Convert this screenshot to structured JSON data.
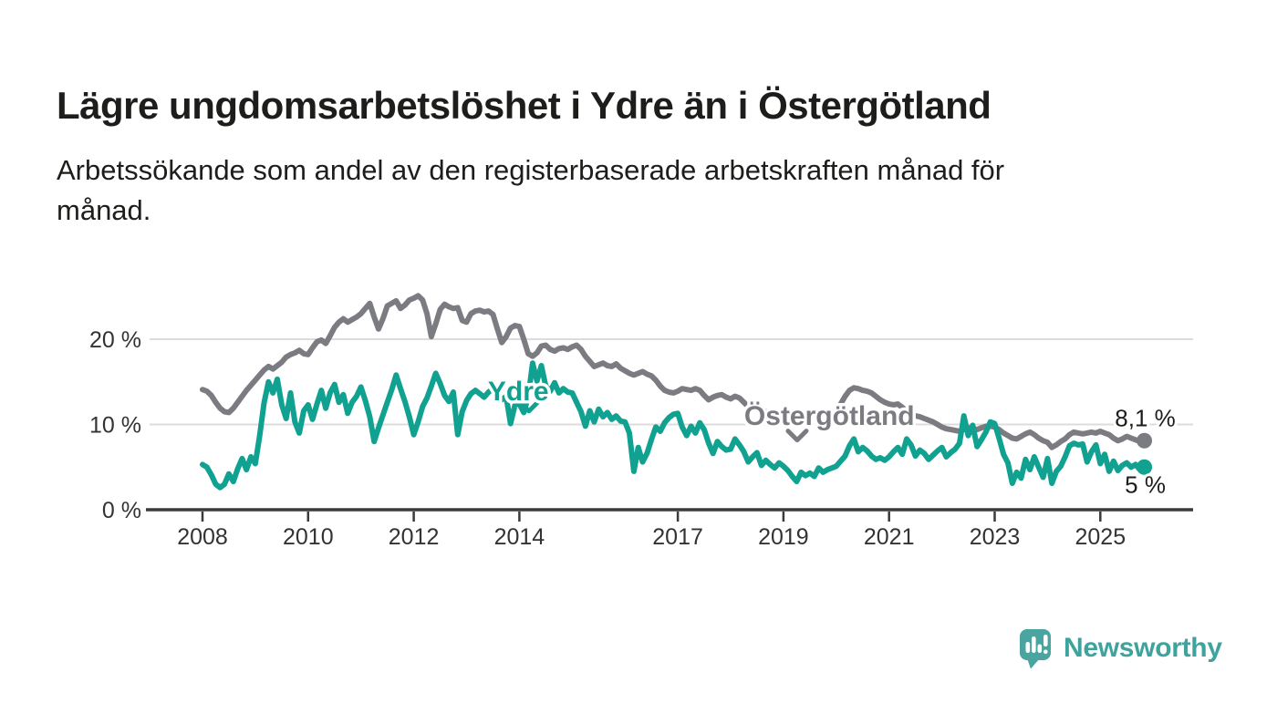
{
  "header": {
    "title": "Lägre ungdomsarbetslöshet i Ydre än i Östergötland",
    "subtitle": "Arbetssökande som andel av den registerbaserade arbetskraften månad för månad.",
    "subtitle_lines": [
      "Arbetssökande som andel av den registerbaserade arbetskraften månad för",
      "månad."
    ]
  },
  "footer": {
    "brand": "Newsworthy"
  },
  "colors": {
    "ydre": "#10a191",
    "ostergotland": "#7b7b82",
    "grid": "#dcdcdc",
    "axis": "#3a3a3a",
    "tick_text": "#333333",
    "label_text": "#1d1d1b",
    "brand_teal": "#3fa39d",
    "brand_icon": "#4aa4a0"
  },
  "chart_data": {
    "type": "line",
    "title": "Lägre ungdomsarbetslöshet i Ydre än i Östergötland",
    "unit": "%",
    "x_start_year": 2008,
    "x_step_months": 1,
    "x_ticks": [
      2008,
      2010,
      2012,
      2014,
      2017,
      2019,
      2021,
      2023,
      2025
    ],
    "x_tick_labels": [
      "2008",
      "2010",
      "2012",
      "2014",
      "2017",
      "2019",
      "2021",
      "2023",
      "2025"
    ],
    "y_ticks": [
      {
        "value": 0,
        "label": "0 %"
      },
      {
        "value": 10,
        "label": "10 %"
      },
      {
        "value": 20,
        "label": "20 %"
      }
    ],
    "ylim": [
      0,
      27
    ],
    "grid": true,
    "legend_position": "inline-labels",
    "series": [
      {
        "name": "Östergötland",
        "color_key": "ostergotland",
        "end_label": "8,1 %",
        "end_value": 8.1,
        "values": [
          14.1,
          13.9,
          13.4,
          12.6,
          11.9,
          11.5,
          11.4,
          11.9,
          12.6,
          13.3,
          14.0,
          14.6,
          15.2,
          15.8,
          16.4,
          16.8,
          16.5,
          16.9,
          17.3,
          17.9,
          18.2,
          18.4,
          18.7,
          18.3,
          18.2,
          19.0,
          19.7,
          19.9,
          19.5,
          20.4,
          21.4,
          22.0,
          22.4,
          22.0,
          22.3,
          22.6,
          23.0,
          23.6,
          24.2,
          22.6,
          21.2,
          22.4,
          23.9,
          24.2,
          24.5,
          23.6,
          24.0,
          24.6,
          24.8,
          25.1,
          24.6,
          23.0,
          20.3,
          21.8,
          23.5,
          24.1,
          23.8,
          23.6,
          23.7,
          22.2,
          22.0,
          23.0,
          23.3,
          23.4,
          23.2,
          23.3,
          22.9,
          21.2,
          19.6,
          20.3,
          21.3,
          21.6,
          21.5,
          20.0,
          18.3,
          18.0,
          18.4,
          19.2,
          19.3,
          18.8,
          18.6,
          18.9,
          19.0,
          18.8,
          19.1,
          19.3,
          18.8,
          18.0,
          17.4,
          16.8,
          17.0,
          17.2,
          16.9,
          16.8,
          17.1,
          16.6,
          16.3,
          16.0,
          15.8,
          16.0,
          16.2,
          15.9,
          15.7,
          15.2,
          14.5,
          14.0,
          13.8,
          13.7,
          13.9,
          14.2,
          14.1,
          14.0,
          14.2,
          14.0,
          13.4,
          12.9,
          13.2,
          13.4,
          13.5,
          13.2,
          13.0,
          13.3,
          13.1,
          12.6,
          12.1,
          11.9,
          12.0,
          11.8,
          11.5,
          11.3,
          11.4,
          11.2,
          11.3,
          11.5,
          11.4,
          11.2,
          11.0,
          10.9,
          11.1,
          11.0,
          10.8,
          10.9,
          11.1,
          11.4,
          11.8,
          12.4,
          13.3,
          14.0,
          14.3,
          14.2,
          14.0,
          13.9,
          13.7,
          13.3,
          12.9,
          12.6,
          12.4,
          12.3,
          12.4,
          12.0,
          11.6,
          11.2,
          11.0,
          10.9,
          10.7,
          10.5,
          10.3,
          10.0,
          9.7,
          9.5,
          9.4,
          9.3,
          9.2,
          9.4,
          9.6,
          9.5,
          9.4,
          9.6,
          9.8,
          9.8,
          9.7,
          9.4,
          9.0,
          8.7,
          8.4,
          8.3,
          8.6,
          8.9,
          9.1,
          8.8,
          8.4,
          8.1,
          7.9,
          7.3,
          7.6,
          8.0,
          8.3,
          8.8,
          9.1,
          9.0,
          8.9,
          9.0,
          9.1,
          9.0,
          9.2,
          9.0,
          8.8,
          8.4,
          8.1,
          8.3,
          8.6,
          8.4,
          8.2,
          8.0,
          8.1
        ]
      },
      {
        "name": "Ydre",
        "color_key": "ydre",
        "end_label": "5 %",
        "end_value": 5.0,
        "values": [
          5.3,
          5.0,
          4.1,
          3.0,
          2.6,
          3.0,
          4.2,
          3.3,
          4.8,
          6.0,
          4.7,
          6.2,
          5.4,
          8.7,
          12.6,
          15.0,
          13.7,
          15.3,
          12.3,
          10.7,
          13.7,
          10.3,
          9.0,
          11.6,
          12.3,
          10.6,
          12.4,
          14.0,
          11.9,
          13.7,
          14.7,
          12.6,
          13.5,
          11.3,
          12.6,
          13.3,
          14.4,
          12.8,
          10.9,
          8.0,
          9.6,
          11.1,
          12.6,
          14.1,
          15.8,
          14.2,
          12.7,
          10.9,
          8.8,
          10.3,
          12.1,
          13.1,
          14.5,
          16.0,
          14.8,
          13.4,
          12.7,
          13.8,
          8.8,
          11.5,
          12.8,
          13.6,
          14.0,
          13.6,
          13.2,
          13.8,
          14.2,
          13.4,
          12.9,
          13.3,
          10.1,
          12.3,
          12.4,
          11.4,
          13.2,
          17.2,
          15.1,
          16.9,
          14.5,
          13.9,
          14.9,
          13.7,
          14.2,
          13.8,
          13.7,
          12.6,
          11.5,
          9.8,
          11.6,
          10.3,
          11.8,
          10.9,
          11.4,
          10.6,
          11.0,
          10.4,
          10.3,
          9.0,
          4.5,
          7.3,
          5.6,
          6.6,
          8.2,
          9.7,
          9.2,
          10.2,
          10.8,
          11.2,
          11.3,
          9.7,
          8.7,
          9.8,
          9.0,
          10.2,
          9.4,
          7.8,
          6.6,
          8.0,
          7.4,
          7.0,
          7.1,
          8.3,
          7.6,
          6.8,
          5.6,
          6.2,
          6.7,
          5.2,
          5.8,
          5.3,
          4.9,
          5.5,
          5.1,
          4.6,
          3.9,
          3.3,
          4.4,
          4.0,
          4.3,
          3.9,
          4.9,
          4.4,
          4.7,
          4.9,
          5.1,
          5.7,
          6.3,
          7.5,
          8.3,
          6.8,
          7.3,
          6.9,
          6.3,
          5.9,
          6.1,
          5.8,
          6.2,
          6.8,
          7.3,
          6.5,
          8.3,
          7.6,
          6.3,
          7.0,
          6.6,
          5.9,
          6.4,
          6.9,
          7.3,
          6.2,
          6.7,
          7.1,
          7.8,
          11.0,
          8.7,
          9.9,
          7.4,
          8.2,
          9.1,
          10.3,
          10.1,
          8.4,
          6.5,
          5.5,
          3.1,
          4.4,
          3.7,
          5.9,
          4.7,
          6.2,
          5.0,
          3.8,
          6.0,
          3.1,
          4.5,
          5.1,
          6.2,
          7.5,
          7.8,
          7.6,
          7.7,
          5.6,
          6.8,
          7.6,
          5.4,
          6.5,
          4.5,
          5.7,
          4.6,
          5.2,
          5.5,
          5.0,
          5.3,
          4.7,
          5.0
        ]
      }
    ],
    "annotations": [
      {
        "series": "Ydre",
        "text": "Ydre",
        "x": 2013.98,
        "y": 14.0,
        "caret_x": 2014.18,
        "caret_y": 12.1
      },
      {
        "series": "Östergötland",
        "text": "Östergötland",
        "x": 2019.87,
        "y": 11.1,
        "caret_x": 2019.26,
        "caret_y": 8.7
      }
    ]
  }
}
